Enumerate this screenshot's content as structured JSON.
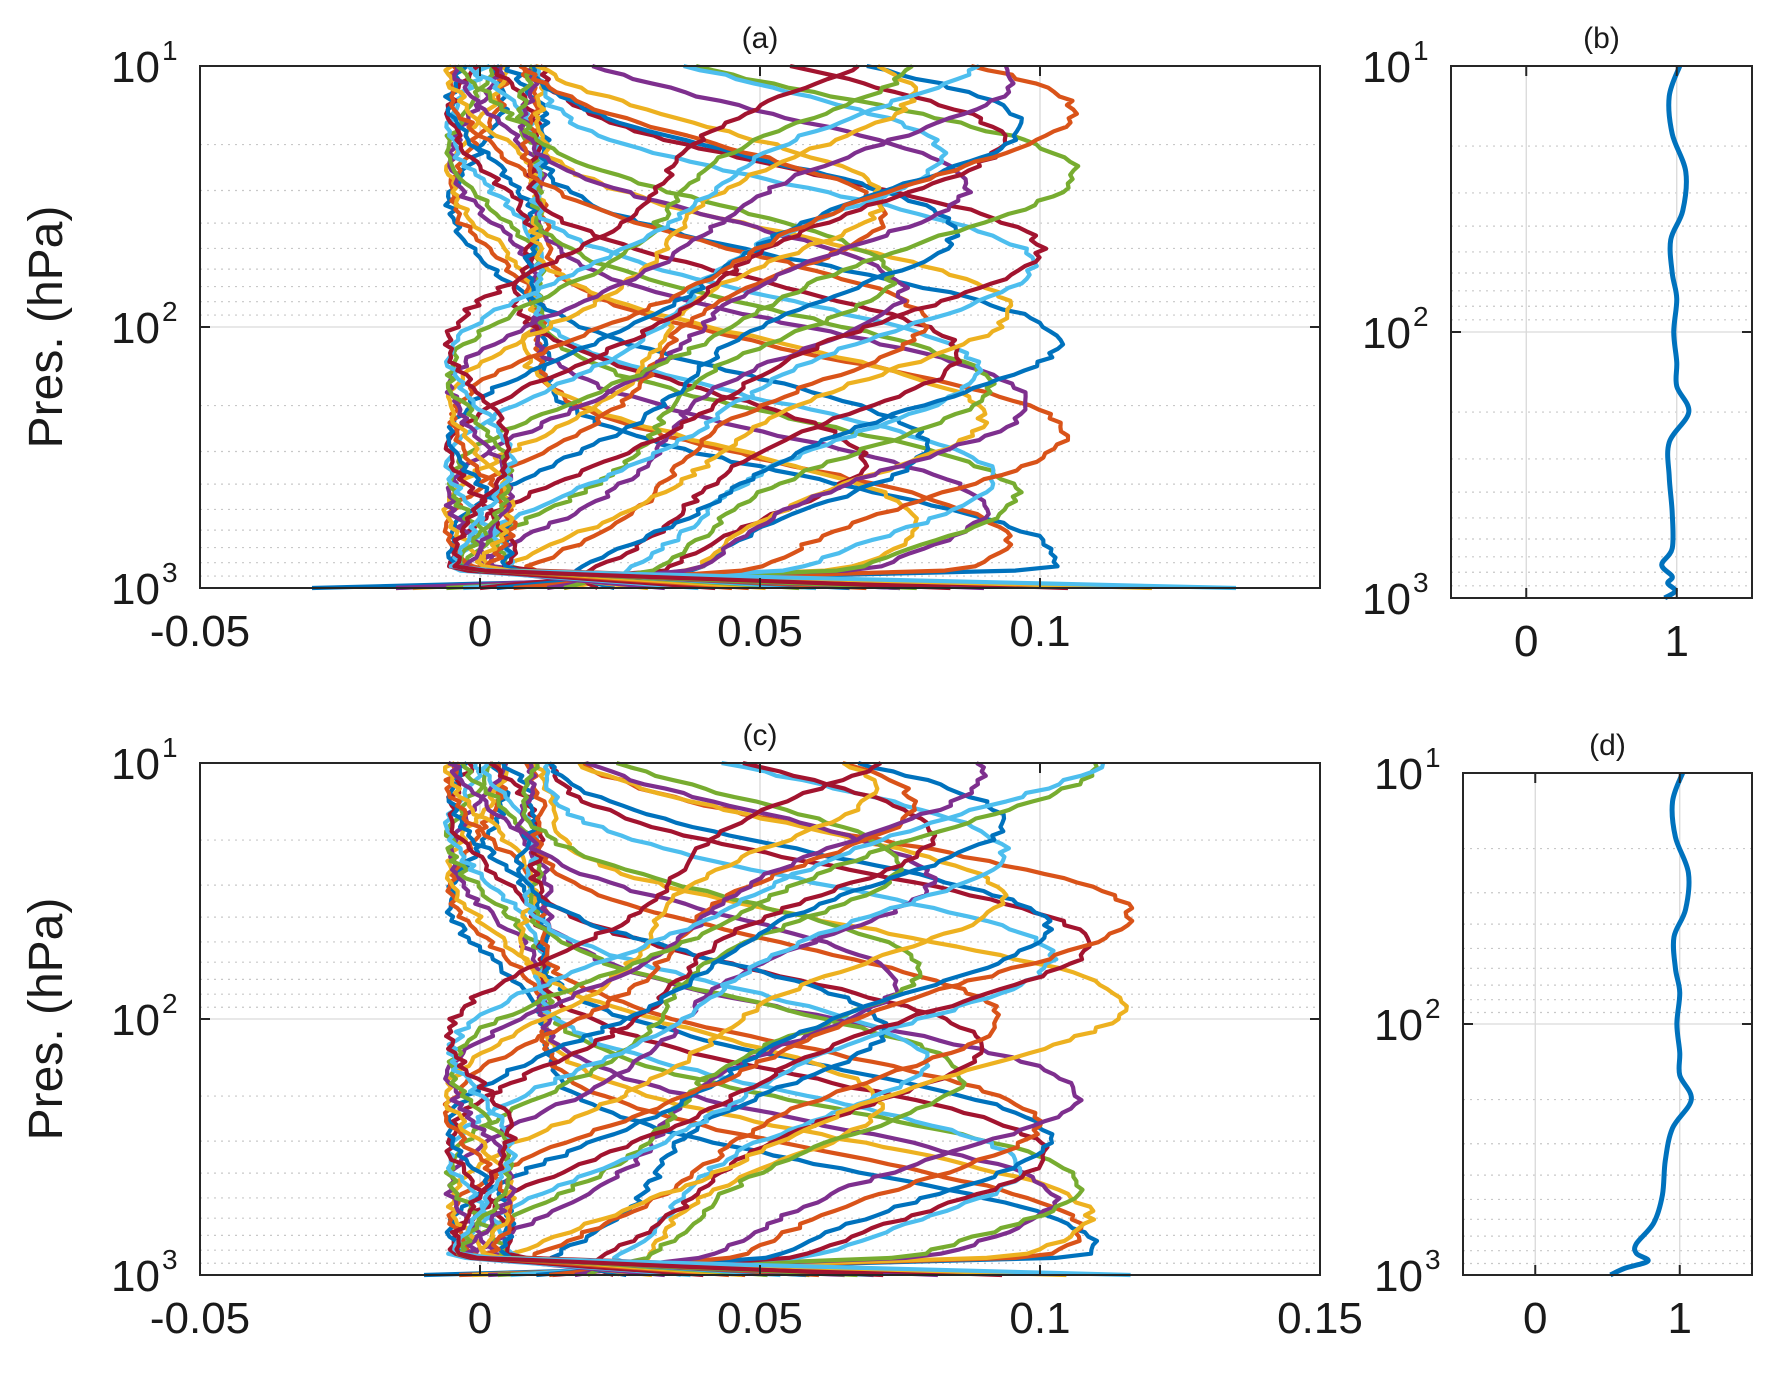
{
  "chart_data": [
    {
      "panel": "a",
      "type": "line",
      "title": "(a)",
      "ylabel": "Pres. (hPa)",
      "xlim": [
        -0.05,
        0.15
      ],
      "ylim": [
        10,
        1000
      ],
      "yscale": "log",
      "xticks": [
        "-0.05",
        "0",
        "0.05",
        "0.1"
      ],
      "yticks": [
        {
          "base": "10",
          "exp": "1"
        },
        {
          "base": "10",
          "exp": "2"
        },
        {
          "base": "10",
          "exp": "3"
        }
      ],
      "grid": true,
      "colors": [
        "#0072BD",
        "#D95319",
        "#EDB120",
        "#7E2F8E",
        "#77AC30",
        "#4DBEEE",
        "#A2142F"
      ],
      "n_lines": 35,
      "peak_amplitude_range": [
        0.06,
        0.1
      ],
      "surface_values": [
        -0.03,
        0.14
      ],
      "description_of_series": "35 vertical perturbation profiles, each a tilted sinusoid with peak near its own pressure level"
    },
    {
      "panel": "b",
      "type": "line",
      "title": "(b)",
      "xlim": [
        -0.5,
        1.5
      ],
      "ylim": [
        10,
        1000
      ],
      "yscale": "log",
      "xticks": [
        "0",
        "1"
      ],
      "yticks": [
        {
          "base": "10",
          "exp": "1"
        },
        {
          "base": "10",
          "exp": "2"
        },
        {
          "base": "10",
          "exp": "3"
        }
      ],
      "grid": true,
      "color": "#0072BD",
      "profile": [
        [
          1.02,
          10
        ],
        [
          0.95,
          13
        ],
        [
          0.97,
          18
        ],
        [
          1.06,
          25
        ],
        [
          1.04,
          35
        ],
        [
          0.96,
          45
        ],
        [
          0.97,
          60
        ],
        [
          1.0,
          75
        ],
        [
          0.98,
          100
        ],
        [
          1.0,
          130
        ],
        [
          1.0,
          160
        ],
        [
          1.08,
          200
        ],
        [
          0.95,
          260
        ],
        [
          0.95,
          350
        ],
        [
          0.97,
          480
        ],
        [
          0.97,
          650
        ],
        [
          0.9,
          750
        ],
        [
          0.97,
          830
        ],
        [
          0.94,
          880
        ],
        [
          0.99,
          940
        ],
        [
          0.92,
          1000
        ]
      ]
    },
    {
      "panel": "c",
      "type": "line",
      "title": "(c)",
      "ylabel": "Pres. (hPa)",
      "xlim": [
        -0.05,
        0.15
      ],
      "ylim": [
        10,
        1000
      ],
      "yscale": "log",
      "xticks": [
        "-0.05",
        "0",
        "0.05",
        "0.1",
        "0.15"
      ],
      "yticks": [
        {
          "base": "10",
          "exp": "1"
        },
        {
          "base": "10",
          "exp": "2"
        },
        {
          "base": "10",
          "exp": "3"
        }
      ],
      "grid": true,
      "colors": [
        "#0072BD",
        "#D95319",
        "#EDB120",
        "#7E2F8E",
        "#77AC30",
        "#4DBEEE",
        "#A2142F"
      ],
      "n_lines": 35,
      "peak_amplitude_range": [
        0.06,
        0.11
      ],
      "surface_values": [
        -0.01,
        0.12
      ],
      "description_of_series": "35 vertical perturbation profiles, each a tilted sinusoid with peak near its own pressure level"
    },
    {
      "panel": "d",
      "type": "line",
      "title": "(d)",
      "xlim": [
        -0.5,
        1.5
      ],
      "ylim": [
        10,
        1000
      ],
      "yscale": "log",
      "xticks": [
        "0",
        "1"
      ],
      "yticks": [
        {
          "base": "10",
          "exp": "1"
        },
        {
          "base": "10",
          "exp": "2"
        },
        {
          "base": "10",
          "exp": "3"
        }
      ],
      "grid": true,
      "color": "#0072BD",
      "profile": [
        [
          1.02,
          10
        ],
        [
          0.95,
          13
        ],
        [
          0.97,
          18
        ],
        [
          1.06,
          25
        ],
        [
          1.04,
          35
        ],
        [
          0.96,
          45
        ],
        [
          0.97,
          60
        ],
        [
          1.0,
          75
        ],
        [
          0.98,
          100
        ],
        [
          1.0,
          130
        ],
        [
          1.0,
          160
        ],
        [
          1.08,
          200
        ],
        [
          0.95,
          260
        ],
        [
          0.9,
          350
        ],
        [
          0.88,
          480
        ],
        [
          0.82,
          620
        ],
        [
          0.7,
          750
        ],
        [
          0.7,
          820
        ],
        [
          0.78,
          880
        ],
        [
          0.62,
          940
        ],
        [
          0.52,
          1000
        ]
      ]
    }
  ]
}
